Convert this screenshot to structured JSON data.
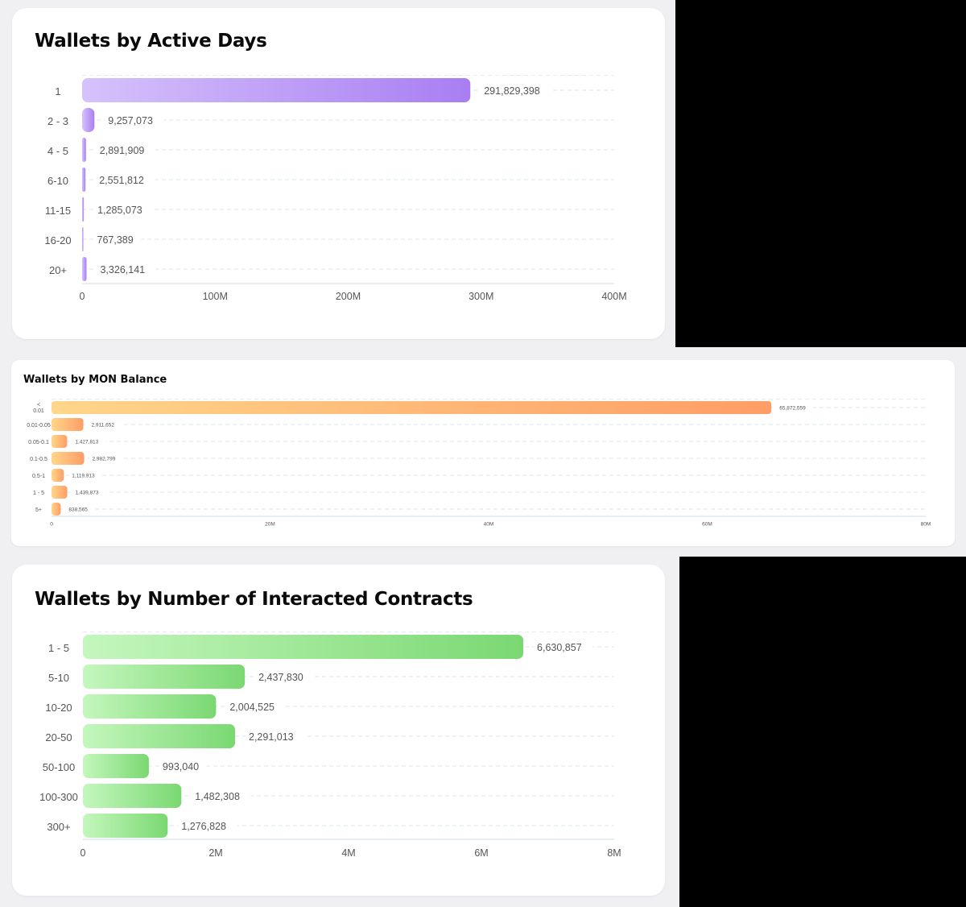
{
  "chart_data": [
    {
      "type": "bar",
      "orientation": "horizontal",
      "title": "Wallets by Active Days",
      "categories": [
        "1",
        "2 - 3",
        "4 - 5",
        "6-10",
        "11-15",
        "16-20",
        "20+"
      ],
      "values": [
        291829398,
        9257073,
        2891909,
        2551812,
        1285073,
        767389,
        3326141
      ],
      "value_labels": [
        "291,829,398",
        "9,257,073",
        "2,891,909",
        "2,551,812",
        "1,285,073",
        "767,389",
        "3,326,141"
      ],
      "xlim": [
        0,
        400000000
      ],
      "xticks": [
        0,
        100000000,
        200000000,
        300000000,
        400000000
      ],
      "xtick_labels": [
        "0",
        "100M",
        "200M",
        "300M",
        "400M"
      ],
      "grid": true,
      "colors": [
        "#d6c2fb",
        "#a87ef2"
      ]
    },
    {
      "type": "bar",
      "orientation": "horizontal",
      "title": "Wallets by MON Balance",
      "categories": [
        "< 0.01",
        "0.01-0.05",
        "0.05-0.1",
        "0.1-0.5",
        "0.5-1",
        "1 - 5",
        "5+"
      ],
      "values": [
        65872559,
        2911652,
        1427813,
        2982799,
        1119913,
        1439873,
        838565
      ],
      "value_labels": [
        "65,872,559",
        "2,911,652",
        "1,427,813",
        "2,982,799",
        "1,119,913",
        "1,439,873",
        "838,565"
      ],
      "xlim": [
        0,
        80000000
      ],
      "xticks": [
        0,
        20000000,
        40000000,
        60000000,
        80000000
      ],
      "xtick_labels": [
        "0",
        "20M",
        "40M",
        "60M",
        "80M"
      ],
      "grid": true,
      "colors": [
        "#ffd68a",
        "#ff9d66"
      ]
    },
    {
      "type": "bar",
      "orientation": "horizontal",
      "title": "Wallets by Number of Interacted Contracts",
      "categories": [
        "1 - 5",
        "5-10",
        "10-20",
        "20-50",
        "50-100",
        "100-300",
        "300+"
      ],
      "values": [
        6630857,
        2437830,
        2004525,
        2291013,
        993040,
        1482308,
        1276828
      ],
      "value_labels": [
        "6,630,857",
        "2,437,830",
        "2,004,525",
        "2,291,013",
        "993,040",
        "1,482,308",
        "1,276,828"
      ],
      "xlim": [
        0,
        8000000
      ],
      "xticks": [
        0,
        2000000,
        4000000,
        6000000,
        8000000
      ],
      "xtick_labels": [
        "0",
        "2M",
        "4M",
        "6M",
        "8M"
      ],
      "grid": true,
      "colors": [
        "#c4f7bd",
        "#7ad872"
      ]
    }
  ]
}
